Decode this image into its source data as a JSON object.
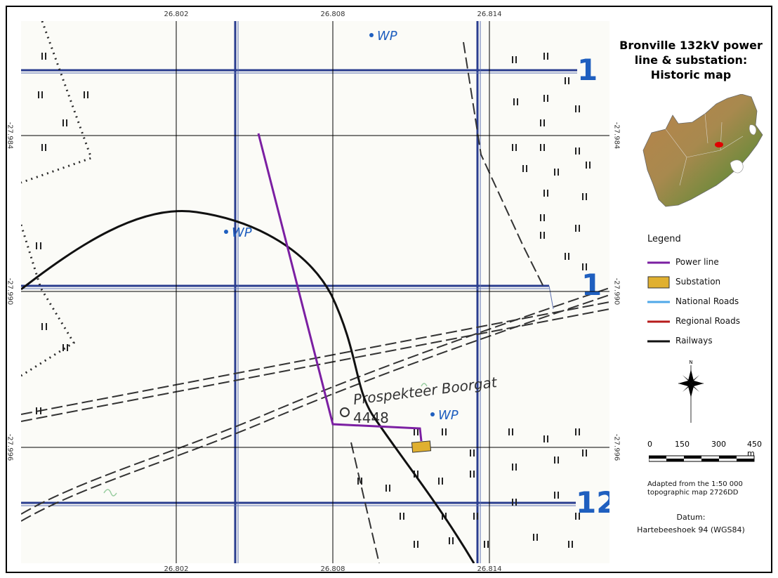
{
  "title_lines": [
    "Bronville 132kV power",
    "line & substation:",
    "Historic map"
  ],
  "coords": {
    "lon": [
      "26.802",
      "26.808",
      "26.814"
    ],
    "lat": [
      "-27.984",
      "-27.990",
      "-27.996"
    ]
  },
  "map_labels": {
    "wp": "WP",
    "place": "Prospekteer Boorgat",
    "number": "4448",
    "contour_12": "12",
    "contour_1a": "1",
    "contour_1b": "1"
  },
  "legend": {
    "title": "Legend",
    "items": [
      {
        "label": "Power line",
        "color": "#7b1fa2",
        "kind": "line"
      },
      {
        "label": "Substation",
        "color": "#e0b030",
        "kind": "box"
      },
      {
        "label": "National Roads",
        "color": "#4fa8e8",
        "kind": "line"
      },
      {
        "label": "Regional Roads",
        "color": "#b71c1c",
        "kind": "line"
      },
      {
        "label": "Railways",
        "color": "#111111",
        "kind": "line"
      }
    ]
  },
  "north_arrow_label": "N",
  "scale": {
    "labels": [
      "0",
      "150",
      "300",
      "450 m"
    ]
  },
  "source_note": [
    "Adapted from the 1:50 000",
    "topographic map 2726DD"
  ],
  "datum": {
    "title": "Datum:",
    "value": "Hartebeeshoek 94 (WGS84)"
  },
  "colors": {
    "power_line": "#7b1fa2",
    "substation": "#e0b030",
    "railway": "#111111",
    "topo_blue": "#1f5fbf",
    "inset_marker": "#e00000"
  }
}
